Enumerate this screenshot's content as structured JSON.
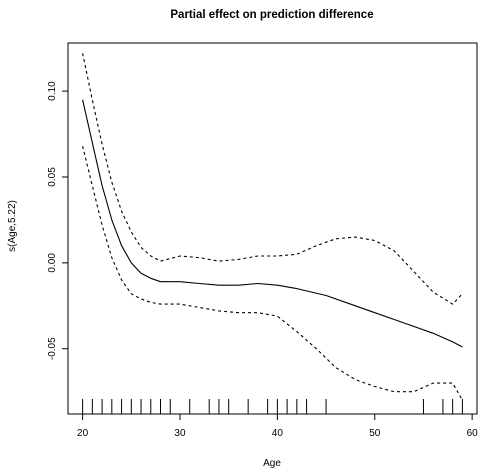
{
  "chart_data": {
    "type": "line",
    "title": "Partial effect on prediction difference",
    "xlabel": "Age",
    "ylabel": "s(Age,5.22)",
    "xlim": [
      18.5,
      60.5
    ],
    "ylim": [
      -0.088,
      0.128
    ],
    "x_ticks": [
      20,
      30,
      40,
      50,
      60
    ],
    "y_ticks": [
      -0.05,
      0.0,
      0.05,
      0.1
    ],
    "y_tick_labels": [
      "-0.05",
      "0.00",
      "0.05",
      "0.10"
    ],
    "series": [
      {
        "style": "solid",
        "x": [
          20,
          21,
          22,
          23,
          24,
          25,
          26,
          27,
          28,
          30,
          32,
          34,
          36,
          38,
          40,
          42,
          45,
          48,
          50,
          52,
          54,
          56,
          58,
          59
        ],
        "y": [
          0.095,
          0.07,
          0.045,
          0.025,
          0.01,
          0.0,
          -0.006,
          -0.009,
          -0.011,
          -0.011,
          -0.012,
          -0.013,
          -0.013,
          -0.012,
          -0.013,
          -0.015,
          -0.019,
          -0.025,
          -0.029,
          -0.033,
          -0.037,
          -0.041,
          -0.046,
          -0.049
        ]
      },
      {
        "style": "dashed",
        "x": [
          20,
          21,
          22,
          23,
          24,
          25,
          26,
          27,
          28,
          30,
          32,
          34,
          36,
          38,
          40,
          42,
          44,
          46,
          48,
          50,
          52,
          54,
          56,
          58,
          59
        ],
        "y": [
          0.122,
          0.095,
          0.069,
          0.047,
          0.03,
          0.018,
          0.009,
          0.004,
          0.001,
          0.004,
          0.003,
          0.001,
          0.002,
          0.004,
          0.004,
          0.005,
          0.01,
          0.014,
          0.015,
          0.013,
          0.007,
          -0.005,
          -0.017,
          -0.024,
          -0.018
        ]
      },
      {
        "style": "dashed",
        "x": [
          20,
          21,
          22,
          23,
          24,
          25,
          26,
          27,
          28,
          30,
          32,
          34,
          36,
          38,
          40,
          42,
          44,
          46,
          48,
          50,
          52,
          54,
          56,
          58,
          59
        ],
        "y": [
          0.068,
          0.045,
          0.022,
          0.003,
          -0.01,
          -0.018,
          -0.021,
          -0.023,
          -0.024,
          -0.024,
          -0.026,
          -0.028,
          -0.029,
          -0.029,
          -0.031,
          -0.04,
          -0.05,
          -0.061,
          -0.068,
          -0.072,
          -0.075,
          -0.075,
          -0.07,
          -0.07,
          -0.08
        ]
      }
    ],
    "rug": [
      20,
      21,
      22,
      23,
      24,
      25,
      26,
      27,
      28,
      29,
      31,
      33,
      34,
      35,
      37,
      39,
      40,
      41,
      42,
      43,
      45,
      55,
      57,
      58,
      59
    ]
  }
}
